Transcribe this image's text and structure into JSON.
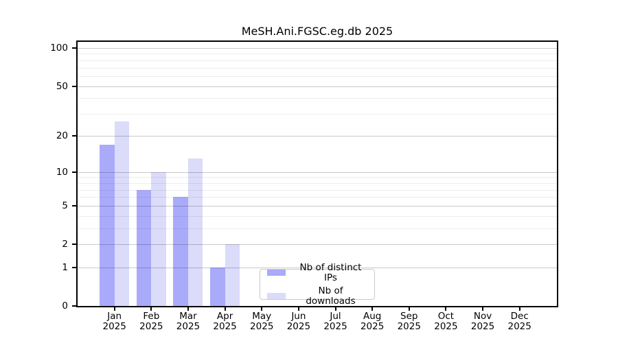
{
  "title": "MeSH.Ani.FGSC.eg.db 2025",
  "chart_data": {
    "type": "bar",
    "title": "MeSH.Ani.FGSC.eg.db 2025",
    "scale": "log1p",
    "categories": [
      "Jan",
      "Feb",
      "Mar",
      "Apr",
      "May",
      "Jun",
      "Jul",
      "Aug",
      "Sep",
      "Oct",
      "Nov",
      "Dec"
    ],
    "year": "2025",
    "series": [
      {
        "name": "Nb of distinct IPs",
        "color": "#aaaafa",
        "values": [
          17,
          7,
          6,
          1,
          0,
          0,
          0,
          0,
          0,
          0,
          0,
          0
        ]
      },
      {
        "name": "Nb of downloads",
        "color": "#dbdbfa",
        "values": [
          26,
          10,
          13,
          2,
          0,
          0,
          0,
          0,
          0,
          0,
          0,
          0
        ]
      }
    ],
    "yticks": [
      0,
      1,
      2,
      5,
      10,
      20,
      50,
      100
    ],
    "minor_yticks": [
      3,
      4,
      6,
      7,
      8,
      9,
      30,
      40,
      60,
      70,
      80,
      90
    ],
    "ylim": [
      0,
      100
    ],
    "xlabel": "",
    "ylabel": "",
    "grid": true,
    "legend_position": "bottom-center"
  },
  "legend": {
    "items": [
      {
        "label": "Nb of distinct IPs",
        "color": "#aaaafa"
      },
      {
        "label": "Nb of downloads",
        "color": "#dbdbfa"
      }
    ]
  },
  "colors": {
    "background": "#ffffff",
    "bar_distinct_ips": "#aaaafa",
    "bar_downloads": "#dbdbfa",
    "axis_frame": "#000000",
    "grid_major": "#c9c9c9",
    "grid_minor": "#ededed",
    "legend_border": "#c9c9c9"
  }
}
